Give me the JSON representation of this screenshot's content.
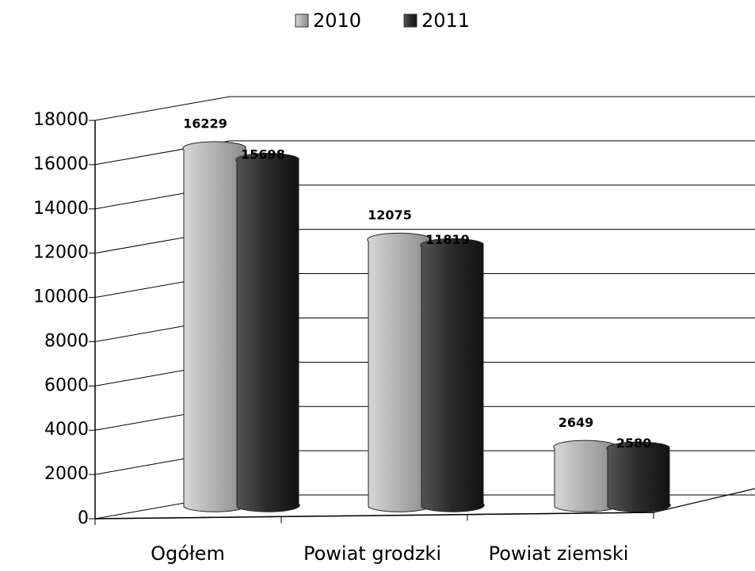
{
  "chart_data": {
    "type": "bar3d",
    "categories": [
      "Ogółem",
      "Powiat grodzki",
      "Powiat ziemski"
    ],
    "series": [
      {
        "name": "2010",
        "color": "#b4b4b4",
        "values": [
          16229,
          12075,
          2649
        ]
      },
      {
        "name": "2011",
        "color": "#2e2e2e",
        "values": [
          15698,
          11819,
          2580
        ]
      }
    ],
    "ylim": [
      0,
      18000
    ],
    "yticks": [
      0,
      2000,
      4000,
      6000,
      8000,
      10000,
      12000,
      14000,
      16000,
      18000
    ],
    "grid": true,
    "legend": "top"
  }
}
